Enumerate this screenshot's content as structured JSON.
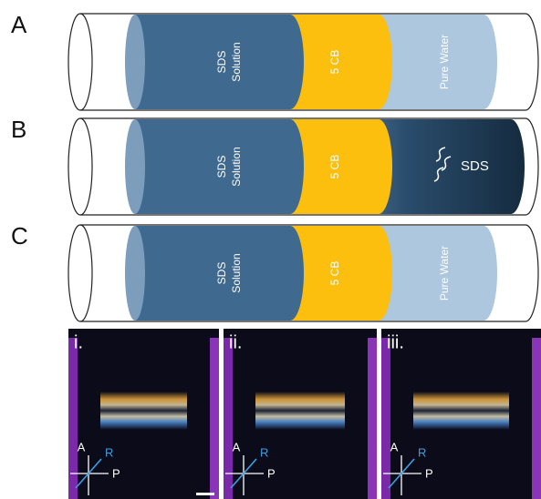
{
  "tubes": [
    {
      "label": "A",
      "sds_solution": [
        "SDS",
        "Solution"
      ],
      "liquid_crystal": "5 CB",
      "water": "Pure Water"
    },
    {
      "label": "B",
      "sds_solution": [
        "SDS",
        "Solution"
      ],
      "liquid_crystal": "5 CB",
      "diffusing": "SDS"
    },
    {
      "label": "C",
      "sds_solution": [
        "SDS",
        "Solution"
      ],
      "liquid_crystal": "5 CB",
      "water": "Pure Water"
    }
  ],
  "micrographs": [
    {
      "label": "i.",
      "analyzer": "A",
      "reference": "R",
      "polarizer": "P"
    },
    {
      "label": "ii.",
      "analyzer": "A",
      "reference": "R",
      "polarizer": "P"
    },
    {
      "label": "iii.",
      "analyzer": "A",
      "reference": "R",
      "polarizer": "P"
    }
  ]
}
